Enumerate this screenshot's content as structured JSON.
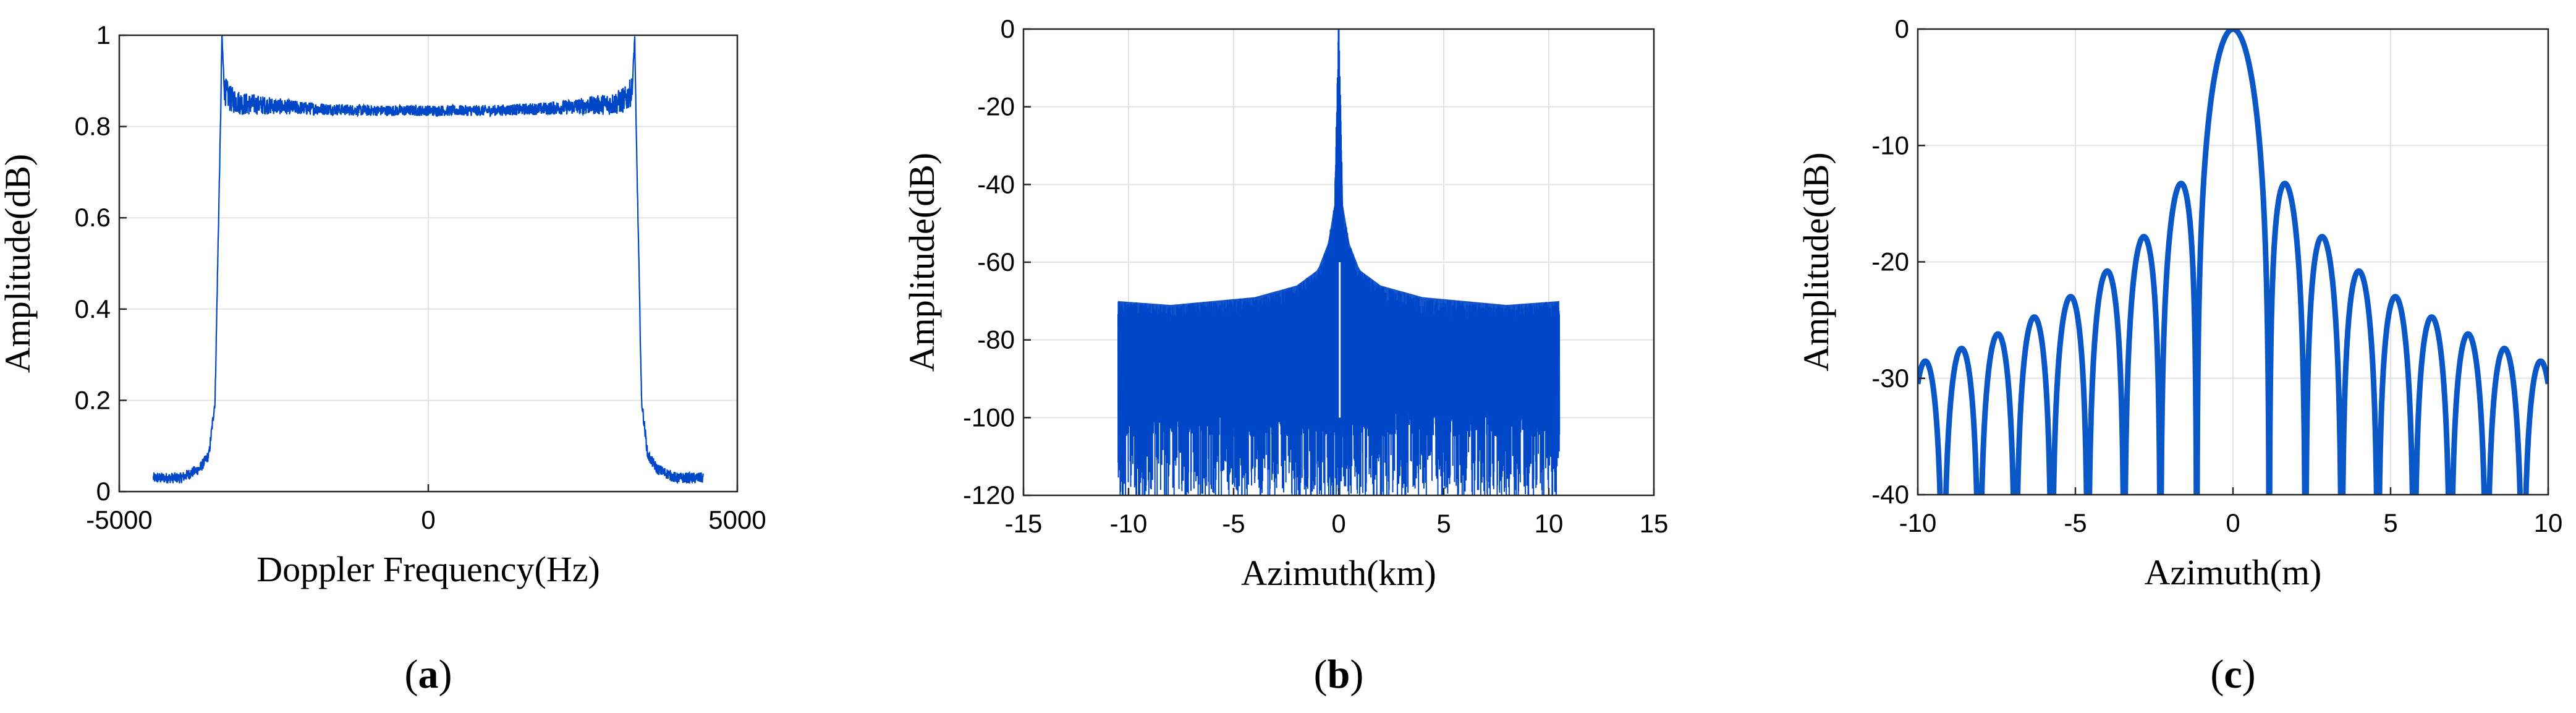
{
  "chart_data": [
    {
      "type": "line",
      "panel": "a",
      "caption_open": "(",
      "caption_letter": "a",
      "caption_close": ")",
      "xlabel": "Doppler Frequency(Hz)",
      "ylabel": "Amplitude(dB)",
      "xlim": [
        -5000,
        5000
      ],
      "ylim": [
        0,
        1
      ],
      "xticks": [
        -5000,
        0,
        5000
      ],
      "yticks": [
        0,
        0.2,
        0.4,
        0.6,
        0.8,
        1
      ],
      "xtick_labels": [
        "-5000",
        "0",
        "5000"
      ],
      "ytick_labels": [
        "0",
        "0.2",
        "0.4",
        "0.6",
        "0.8",
        "1"
      ],
      "grid": true,
      "color": "#0047c8",
      "series": [
        {
          "x": [
            -4450,
            -4000,
            -3700,
            -3550,
            -3450,
            -3400,
            -3360,
            -3340,
            -3300,
            -3200,
            -3000,
            -2000,
            -1000,
            0,
            1000,
            2000,
            3000,
            3200,
            3300,
            3340,
            3360,
            3400,
            3450,
            3550,
            3700,
            4000,
            4450
          ],
          "y": [
            0.03,
            0.03,
            0.05,
            0.08,
            0.2,
            0.55,
            0.82,
            1.0,
            0.88,
            0.86,
            0.85,
            0.84,
            0.835,
            0.835,
            0.835,
            0.84,
            0.85,
            0.86,
            0.88,
            1.0,
            0.82,
            0.55,
            0.2,
            0.08,
            0.05,
            0.03,
            0.03
          ]
        }
      ]
    },
    {
      "type": "line",
      "panel": "b",
      "caption_open": "(",
      "caption_letter": "b",
      "caption_close": ")",
      "xlabel": "Azimuth(km)",
      "ylabel": "Amplitude(dB)",
      "xlim": [
        -15,
        15
      ],
      "ylim": [
        -120,
        0
      ],
      "xticks": [
        -15,
        -10,
        -5,
        0,
        5,
        10,
        15
      ],
      "yticks": [
        -120,
        -100,
        -80,
        -60,
        -40,
        -20,
        0
      ],
      "xtick_labels": [
        "-15",
        "-10",
        "-5",
        "0",
        "5",
        "10",
        "15"
      ],
      "ytick_labels": [
        "-120",
        "-100",
        "-80",
        "-60",
        "-40",
        "-20",
        "0"
      ],
      "grid": true,
      "color": "#0047c8",
      "series": [
        {
          "x": [
            -10.5,
            -8,
            -6,
            -4,
            -2,
            -1,
            -0.5,
            -0.2,
            0,
            0.2,
            0.5,
            1,
            2,
            4,
            6,
            8,
            10.5
          ],
          "y": [
            -73,
            -74,
            -73,
            -72,
            -69,
            -65,
            -58,
            -48,
            0,
            -48,
            -58,
            -65,
            -69,
            -72,
            -73,
            -74,
            -73
          ]
        }
      ],
      "noise_floor": [
        -120,
        -75
      ]
    },
    {
      "type": "line",
      "panel": "c",
      "caption_open": "(",
      "caption_letter": "c",
      "caption_close": ")",
      "xlabel": "Azimuth(m)",
      "ylabel": "Amplitude(dB)",
      "xlim": [
        -10,
        10
      ],
      "ylim": [
        -40,
        0
      ],
      "xticks": [
        -10,
        -5,
        0,
        5,
        10
      ],
      "yticks": [
        -40,
        -30,
        -20,
        -10,
        0
      ],
      "xtick_labels": [
        "-10",
        "-5",
        "0",
        "5",
        "10"
      ],
      "ytick_labels": [
        "-40",
        "-30",
        "-20",
        "-10",
        "0"
      ],
      "grid": true,
      "color": "#0a57c8",
      "mainlobe_null": 1.15,
      "sidelobe_peaks": [
        {
          "x": 1.7,
          "y": -13.3
        },
        {
          "x": 2.85,
          "y": -17.8
        },
        {
          "x": 4.0,
          "y": -20.6
        },
        {
          "x": 5.15,
          "y": -22.9
        },
        {
          "x": 6.3,
          "y": -24.6
        },
        {
          "x": 7.45,
          "y": -26.1
        },
        {
          "x": 8.6,
          "y": -27.3
        },
        {
          "x": 9.7,
          "y": -28.5
        }
      ]
    }
  ]
}
